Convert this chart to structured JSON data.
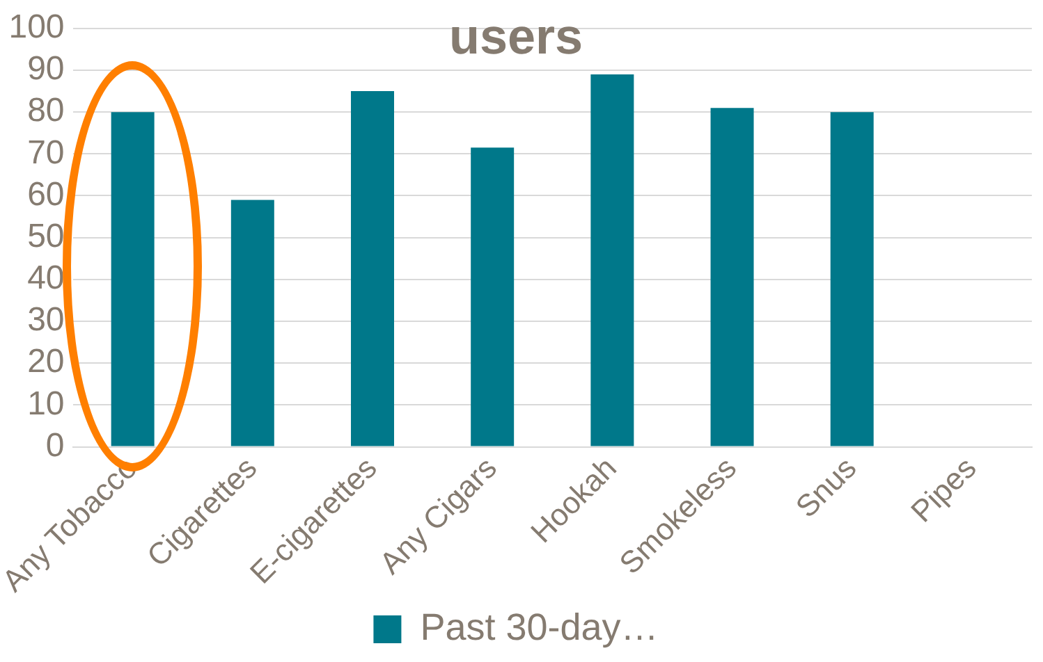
{
  "chart_data": {
    "type": "bar",
    "title": "users",
    "categories": [
      "Any Tobacco",
      "Cigarettes",
      "E-cigarettes",
      "Any Cigars",
      "Hookah",
      "Smokeless",
      "Snus",
      "Pipes"
    ],
    "series": [
      {
        "name": "Past 30-day…",
        "color": "#00788a",
        "values": [
          80,
          59,
          85,
          71.5,
          89,
          81,
          80,
          null
        ]
      }
    ],
    "ylim": [
      0,
      100
    ],
    "yticks": [
      0,
      10,
      20,
      30,
      40,
      50,
      60,
      70,
      80,
      90,
      100
    ],
    "grid": "y",
    "legend": "bottom"
  }
}
